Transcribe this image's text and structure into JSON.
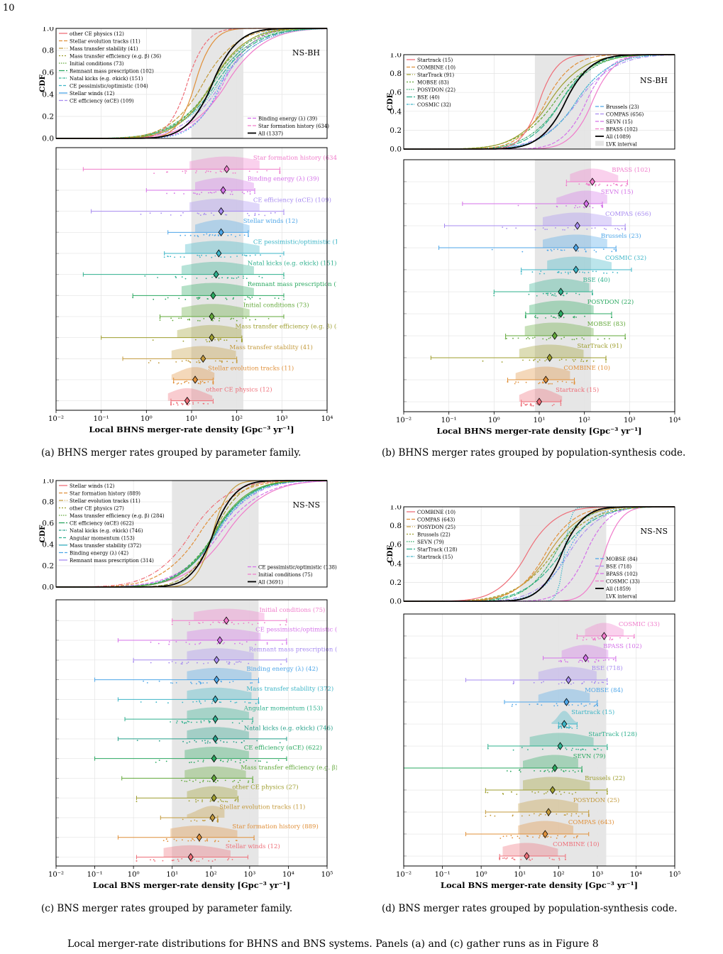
{
  "page_number": "10",
  "bottom_text": "Local merger-rate distributions for BHNS and BNS systems. Panels (a) and (c) gather runs as in Figure 8",
  "colors": {
    "grid": "#e4e4e4",
    "lvk": "#e6e6e6",
    "all": "#000000"
  },
  "chart_data": [
    {
      "id": "a",
      "type": "scatter",
      "class": "NS-BH",
      "caption": "(a) BHNS merger rates grouped by parameter family.",
      "xlabel": "Local BHNS merger-rate density [Gpc⁻³ yr⁻¹]",
      "ylabel": "CDF",
      "xscale": "log",
      "xlim": [
        0.01,
        10000
      ],
      "ylim": [
        0,
        1
      ],
      "lvk": [
        10,
        140
      ],
      "xticks": [
        "10⁻²",
        "10⁻¹",
        "10⁰",
        "10¹",
        "10²",
        "10³",
        "10⁴"
      ],
      "yticks": [
        "0.0",
        "0.2",
        "0.4",
        "0.6",
        "0.8",
        "1.0"
      ],
      "legend_left": [
        "other CE physics (12)",
        "Stellar evolution tracks (11)",
        "Mass transfer stability (41)",
        "Mass transfer efficiency (e.g. β) (36)",
        "Initial conditions (73)",
        "Remnant mass prescription (102)",
        "Natal kicks (e.g. σkick) (151)",
        "CE pessimistic/optimistic (104)",
        "Stellar winds (12)",
        "CE efficiency (αCE) (109)"
      ],
      "legend_right": [
        "Binding energy (λ) (39)",
        "Star formation history (634)",
        "All (1337)"
      ],
      "rows": [
        {
          "label": "Star formation history (634)",
          "color": "#f07ccb",
          "min": 0.04,
          "max": 900,
          "median": 60,
          "q1": 15,
          "q3": 200
        },
        {
          "label": "Binding energy (λ) (39)",
          "color": "#d472e8",
          "min": 1,
          "max": 250,
          "median": 50,
          "q1": 20,
          "q3": 150
        },
        {
          "label": "CE efficiency (αCE) (109)",
          "color": "#a78bf0",
          "min": 0.06,
          "max": 1100,
          "median": 45,
          "q1": 15,
          "q3": 200
        },
        {
          "label": "Stellar winds (12)",
          "color": "#4ea6e8",
          "min": 3,
          "max": 180,
          "median": 45,
          "q1": 20,
          "q3": 120
        },
        {
          "label": "CE pessimistic/optimistic (104)",
          "color": "#3cb5c7",
          "min": 2.5,
          "max": 1100,
          "median": 40,
          "q1": 12,
          "q3": 200
        },
        {
          "label": "Natal kicks (e.g. σkick) (151)",
          "color": "#2fb08e",
          "min": 0.04,
          "max": 1100,
          "median": 35,
          "q1": 10,
          "q3": 150
        },
        {
          "label": "Remnant mass prescription (102)",
          "color": "#2aa860",
          "min": 0.5,
          "max": 1100,
          "median": 30,
          "q1": 10,
          "q3": 150
        },
        {
          "label": "Initial conditions (73)",
          "color": "#62a83a",
          "min": 2,
          "max": 1100,
          "median": 28,
          "q1": 10,
          "q3": 120
        },
        {
          "label": "Mass transfer efficiency (e.g. β) (36)",
          "color": "#9e9e2e",
          "min": 0.1,
          "max": 130,
          "median": 28,
          "q1": 8,
          "q3": 80
        },
        {
          "label": "Mass transfer stability (41)",
          "color": "#c39a3c",
          "min": 0.3,
          "max": 100,
          "median": 18,
          "q1": 6,
          "q3": 60
        },
        {
          "label": "Stellar evolution tracks (11)",
          "color": "#e0903a",
          "min": 4,
          "max": 30,
          "median": 12,
          "q1": 6,
          "q3": 20
        },
        {
          "label": "other CE physics (12)",
          "color": "#ee6e78",
          "min": 3.5,
          "max": 30,
          "median": 8,
          "q1": 5,
          "q3": 18
        }
      ]
    },
    {
      "id": "b",
      "type": "scatter",
      "class": "NS-BH",
      "caption": "(b) BHNS merger rates grouped by population-synthesis code.",
      "xlabel": "Local BHNS merger-rate density [Gpc⁻³ yr⁻¹]",
      "ylabel": "CDF",
      "xscale": "log",
      "xlim": [
        0.01,
        10000
      ],
      "ylim": [
        0,
        1
      ],
      "lvk": [
        8,
        140
      ],
      "xticks": [
        "10⁻²",
        "10⁻¹",
        "10⁰",
        "10¹",
        "10²",
        "10³",
        "10⁴"
      ],
      "yticks": [
        "0.0",
        "0.2",
        "0.4",
        "0.6",
        "0.8",
        "1.0"
      ],
      "legend_left": [
        "Startrack (15)",
        "COMBINE (10)",
        "StarTrack (91)",
        "MOBSE (83)",
        "POSYDON (22)",
        "BSE (40)",
        "COSMIC (32)"
      ],
      "legend_right": [
        "Brussels (23)",
        "COMPAS (656)",
        "SEVN (15)",
        "BPASS (102)",
        "All (1089)",
        "LVK interval"
      ],
      "rows": [
        {
          "label": "BPASS (102)",
          "color": "#f07ccb",
          "min": 40,
          "max": 900,
          "median": 150,
          "q1": 80,
          "q3": 350
        },
        {
          "label": "SEVN (15)",
          "color": "#d472e8",
          "min": 0.2,
          "max": 250,
          "median": 110,
          "q1": 40,
          "q3": 200
        },
        {
          "label": "COMPAS (656)",
          "color": "#a78bf0",
          "min": 0.08,
          "max": 800,
          "median": 70,
          "q1": 20,
          "q3": 250
        },
        {
          "label": "Brussels (23)",
          "color": "#4ea6e8",
          "min": 0.06,
          "max": 500,
          "median": 65,
          "q1": 20,
          "q3": 200
        },
        {
          "label": "COSMIC (32)",
          "color": "#3cb5c7",
          "min": 4,
          "max": 1100,
          "median": 65,
          "q1": 25,
          "q3": 250
        },
        {
          "label": "BSE (40)",
          "color": "#2fb08e",
          "min": 1,
          "max": 150,
          "median": 30,
          "q1": 10,
          "q3": 80
        },
        {
          "label": "POSYDON (22)",
          "color": "#2aa860",
          "min": 5,
          "max": 400,
          "median": 30,
          "q1": 10,
          "q3": 100
        },
        {
          "label": "MOBSE (83)",
          "color": "#62a83a",
          "min": 1.8,
          "max": 800,
          "median": 22,
          "q1": 8,
          "q3": 100
        },
        {
          "label": "StarTrack (91)",
          "color": "#9e9e2e",
          "min": 0.04,
          "max": 300,
          "median": 17,
          "q1": 6,
          "q3": 60
        },
        {
          "label": "COMBINE (10)",
          "color": "#e0903a",
          "min": 2,
          "max": 60,
          "median": 14,
          "q1": 5,
          "q3": 30
        },
        {
          "label": "Startrack (15)",
          "color": "#ee6e78",
          "min": 4,
          "max": 30,
          "median": 10,
          "q1": 6,
          "q3": 20
        }
      ]
    },
    {
      "id": "c",
      "type": "scatter",
      "class": "NS-NS",
      "caption": "(c) BNS merger rates grouped by parameter family.",
      "xlabel": "Local BNS merger-rate density [Gpc⁻³ yr⁻¹]",
      "ylabel": "CDF",
      "xscale": "log",
      "xlim": [
        0.01,
        100000
      ],
      "ylim": [
        0,
        1
      ],
      "lvk": [
        10,
        1700
      ],
      "xticks": [
        "10⁻²",
        "10⁻¹",
        "10⁰",
        "10¹",
        "10²",
        "10³",
        "10⁴",
        "10⁵"
      ],
      "yticks": [
        "0.0",
        "0.2",
        "0.4",
        "0.6",
        "0.8",
        "1.0"
      ],
      "legend_left": [
        "Stellar winds (12)",
        "Star formation history (889)",
        "Stellar evolution tracks (11)",
        "other CE physics (27)",
        "Mass transfer efficiency (e.g. β) (284)",
        "CE efficiency (αCE) (622)",
        "Natal kicks (e.g. σkick) (746)",
        "Angular momentum (153)",
        "Mass transfer stability (372)",
        "Binding energy (λ) (42)",
        "Remnant mass prescription (314)"
      ],
      "legend_right": [
        "CE pessimistic/optimistic (138)",
        "Initial conditions (75)",
        "All (3691)"
      ],
      "rows": [
        {
          "label": "Initial conditions (75)",
          "color": "#f07ccb",
          "min": 10,
          "max": 9000,
          "median": 250,
          "q1": 60,
          "q3": 1500
        },
        {
          "label": "CE pessimistic/optimistic (138)",
          "color": "#d472e8",
          "min": 0.4,
          "max": 9000,
          "median": 170,
          "q1": 40,
          "q3": 1200
        },
        {
          "label": "Remnant mass prescription (314)",
          "color": "#a78bf0",
          "min": 1,
          "max": 9000,
          "median": 140,
          "q1": 40,
          "q3": 800
        },
        {
          "label": "Binding energy (λ) (42)",
          "color": "#4ea6e8",
          "min": 0.1,
          "max": 1700,
          "median": 140,
          "q1": 40,
          "q3": 700
        },
        {
          "label": "Mass transfer stability (372)",
          "color": "#3cb5c7",
          "min": 0.4,
          "max": 1700,
          "median": 130,
          "q1": 40,
          "q3": 700
        },
        {
          "label": "Angular momentum (153)",
          "color": "#2fb08e",
          "min": 0.6,
          "max": 1200,
          "median": 130,
          "q1": 40,
          "q3": 600
        },
        {
          "label": "Natal kicks (e.g. σkick) (746)",
          "color": "#26a08a",
          "min": 0.4,
          "max": 9000,
          "median": 130,
          "q1": 40,
          "q3": 600
        },
        {
          "label": "CE efficiency (αCE) (622)",
          "color": "#2aa860",
          "min": 0.1,
          "max": 9000,
          "median": 120,
          "q1": 35,
          "q3": 600
        },
        {
          "label": "Mass transfer efficiency (e.g. β) (284)",
          "color": "#62a83a",
          "min": 0.5,
          "max": 1200,
          "median": 120,
          "q1": 35,
          "q3": 500
        },
        {
          "label": "other CE physics (27)",
          "color": "#9e9e2e",
          "min": 1.2,
          "max": 500,
          "median": 120,
          "q1": 40,
          "q3": 300
        },
        {
          "label": "Stellar evolution tracks (11)",
          "color": "#c39a3c",
          "min": 5,
          "max": 150,
          "median": 110,
          "q1": 40,
          "q3": 140
        },
        {
          "label": "Star formation history (889)",
          "color": "#e0903a",
          "min": 0.4,
          "max": 1300,
          "median": 50,
          "q1": 15,
          "q3": 300
        },
        {
          "label": "Stellar winds (12)",
          "color": "#ee6e78",
          "min": 1.2,
          "max": 900,
          "median": 30,
          "q1": 10,
          "q3": 200
        }
      ]
    },
    {
      "id": "d",
      "type": "scatter",
      "class": "NS-NS",
      "caption": "(d) BNS merger rates grouped by population-synthesis code.",
      "xlabel": "Local BNS merger-rate density [Gpc⁻³ yr⁻¹]",
      "ylabel": "CDF",
      "xscale": "log",
      "xlim": [
        0.01,
        100000
      ],
      "ylim": [
        0,
        1
      ],
      "lvk": [
        10,
        1700
      ],
      "xticks": [
        "10⁻²",
        "10⁻¹",
        "10⁰",
        "10¹",
        "10²",
        "10³",
        "10⁴",
        "10⁵"
      ],
      "yticks": [
        "0.0",
        "0.2",
        "0.4",
        "0.6",
        "0.8",
        "1.0"
      ],
      "legend_left": [
        "COMBINE (10)",
        "COMPAS (643)",
        "POSYDON (25)",
        "Brussels (22)",
        "SEVN (79)",
        "StarTrack (128)",
        "Startrack (15)"
      ],
      "legend_right": [
        "MOBSE (84)",
        "BSE (718)",
        "BPASS (102)",
        "COSMIC (33)",
        "All (1859)",
        "LVK interval"
      ],
      "rows": [
        {
          "label": "COSMIC (33)",
          "color": "#f07ccb",
          "min": 300,
          "max": 9000,
          "median": 1500,
          "q1": 800,
          "q3": 3000
        },
        {
          "label": "BPASS (102)",
          "color": "#d472e8",
          "min": 40,
          "max": 3000,
          "median": 500,
          "q1": 200,
          "q3": 1200
        },
        {
          "label": "BSE (718)",
          "color": "#a78bf0",
          "min": 0.4,
          "max": 1800,
          "median": 180,
          "q1": 50,
          "q3": 600
        },
        {
          "label": "MOBSE (84)",
          "color": "#4ea6e8",
          "min": 4,
          "max": 1000,
          "median": 160,
          "q1": 50,
          "q3": 400
        },
        {
          "label": "Startrack (15)",
          "color": "#3cb5c7",
          "min": 100,
          "max": 300,
          "median": 140,
          "q1": 110,
          "q3": 180
        },
        {
          "label": "StarTrack (128)",
          "color": "#2fb08e",
          "min": 1.5,
          "max": 1800,
          "median": 110,
          "q1": 30,
          "q3": 500
        },
        {
          "label": "SEVN (79)",
          "color": "#2aa860",
          "min": 0.01,
          "max": 400,
          "median": 80,
          "q1": 20,
          "q3": 200
        },
        {
          "label": "Brussels (22)",
          "color": "#9e9e2e",
          "min": 1.3,
          "max": 1800,
          "median": 70,
          "q1": 20,
          "q3": 400
        },
        {
          "label": "POSYDON (25)",
          "color": "#c39a3c",
          "min": 1.3,
          "max": 600,
          "median": 55,
          "q1": 15,
          "q3": 200
        },
        {
          "label": "COMPAS (643)",
          "color": "#e0903a",
          "min": 0.4,
          "max": 600,
          "median": 45,
          "q1": 15,
          "q3": 150
        },
        {
          "label": "COMBINE (10)",
          "color": "#ee6e78",
          "min": 3,
          "max": 150,
          "median": 15,
          "q1": 6,
          "q3": 60
        }
      ]
    }
  ]
}
